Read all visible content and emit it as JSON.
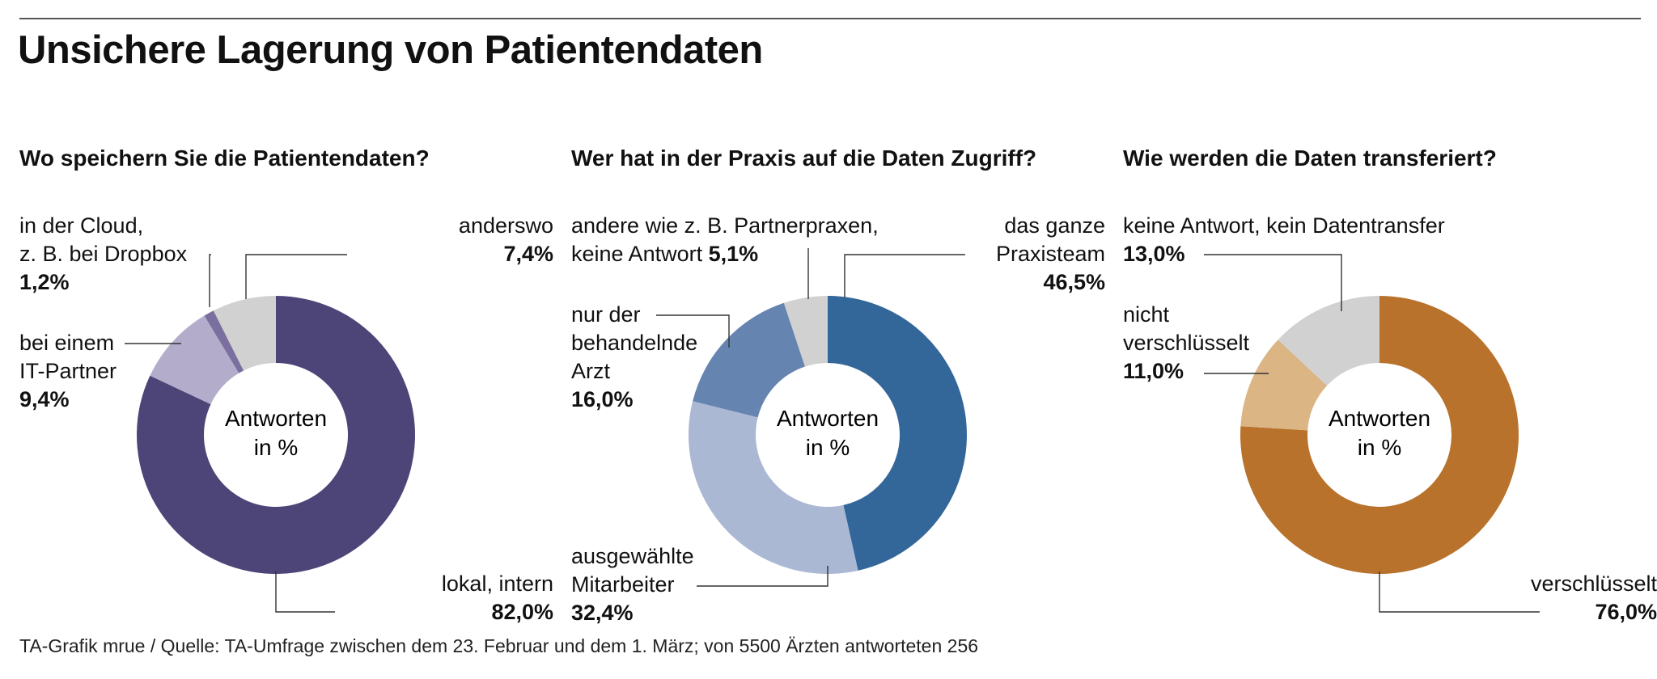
{
  "title": "Unsichere Lagerung von Patientendaten",
  "footer": "TA-Grafik mrue / Quelle: TA-Umfrage zwischen dem 23. Februar und dem 1. März; von 5500 Ärzten antworteten 256",
  "center_label": {
    "line1": "Antworten",
    "line2": "in %"
  },
  "chart_data": [
    {
      "type": "pie",
      "title": "Wo speichern Sie die Patientendaten?",
      "slices": [
        {
          "name": "lokal, intern",
          "label_lines": [
            "lokal, intern"
          ],
          "value": 82.0,
          "value_label": "82,0%",
          "color": "#4d4478"
        },
        {
          "name": "bei einem IT-Partner",
          "label_lines": [
            "bei einem",
            "IT-Partner"
          ],
          "value": 9.4,
          "value_label": "9,4%",
          "color": "#b3adcb"
        },
        {
          "name": "in der Cloud, z. B. bei Dropbox",
          "label_lines": [
            "in der Cloud,",
            "z. B. bei Dropbox"
          ],
          "value": 1.2,
          "value_label": "1,2%",
          "color": "#7a6f9e"
        },
        {
          "name": "anderswo",
          "label_lines": [
            "anderswo"
          ],
          "value": 7.4,
          "value_label": "7,4%",
          "color": "#d2d1d1"
        }
      ]
    },
    {
      "type": "pie",
      "title": "Wer hat in der Praxis auf die Daten Zugriff?",
      "slices": [
        {
          "name": "das ganze Praxisteam",
          "label_lines": [
            "das ganze",
            "Praxisteam"
          ],
          "value": 46.5,
          "value_label": "46,5%",
          "color": "#336699"
        },
        {
          "name": "ausgewählte Mitarbeiter",
          "label_lines": [
            "ausgewählte",
            "Mitarbeiter"
          ],
          "value": 32.4,
          "value_label": "32,4%",
          "color": "#aab8d3"
        },
        {
          "name": "nur der behandelnde Arzt",
          "label_lines": [
            "nur der",
            "behandelnde",
            "Arzt"
          ],
          "value": 16.0,
          "value_label": "16,0%",
          "color": "#6585b0"
        },
        {
          "name": "andere wie z. B. Partnerpraxen, keine Antwort",
          "label_lines": [
            "andere wie z. B. Partnerpraxen,",
            "keine Antwort"
          ],
          "value": 5.1,
          "value_label": "5,1%",
          "color": "#d2d1d1"
        }
      ]
    },
    {
      "type": "pie",
      "title": "Wie werden die Daten transferiert?",
      "slices": [
        {
          "name": "verschlüsselt",
          "label_lines": [
            "verschlüsselt"
          ],
          "value": 76.0,
          "value_label": "76,0%",
          "color": "#b8722b"
        },
        {
          "name": "nicht verschlüsselt",
          "label_lines": [
            "nicht",
            "verschlüsselt"
          ],
          "value": 11.0,
          "value_label": "11,0%",
          "color": "#dbb584"
        },
        {
          "name": "keine Antwort, kein Datentransfer",
          "label_lines": [
            "keine Antwort, kein Datentransfer"
          ],
          "value": 13.0,
          "value_label": "13,0%",
          "color": "#d2d1d1"
        }
      ]
    }
  ]
}
